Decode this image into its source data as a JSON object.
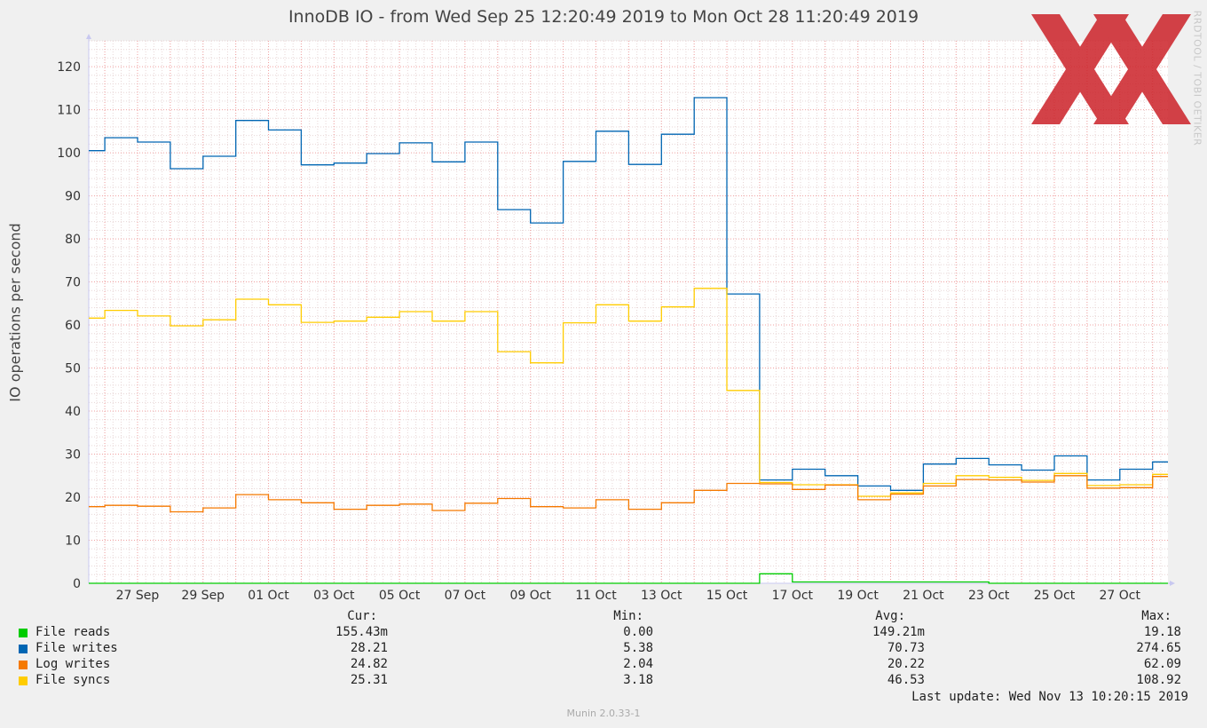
{
  "chart_data": {
    "type": "line",
    "title": "InnoDB IO - from Wed Sep 25 12:20:49 2019 to Mon Oct 28 11:20:49 2019",
    "ylabel": "IO operations per second",
    "xlabel": "",
    "ylim": [
      0,
      126
    ],
    "y_ticks": [
      0,
      10,
      20,
      30,
      40,
      50,
      60,
      70,
      80,
      90,
      100,
      110,
      120
    ],
    "x_range_days": [
      25.51,
      58.47
    ],
    "x_ticks": [
      {
        "day": 27,
        "label": "27 Sep"
      },
      {
        "day": 29,
        "label": "29 Sep"
      },
      {
        "day": 31,
        "label": "01 Oct"
      },
      {
        "day": 33,
        "label": "03 Oct"
      },
      {
        "day": 35,
        "label": "05 Oct"
      },
      {
        "day": 37,
        "label": "07 Oct"
      },
      {
        "day": 39,
        "label": "09 Oct"
      },
      {
        "day": 41,
        "label": "11 Oct"
      },
      {
        "day": 43,
        "label": "13 Oct"
      },
      {
        "day": 45,
        "label": "15 Oct"
      },
      {
        "day": 47,
        "label": "17 Oct"
      },
      {
        "day": 49,
        "label": "19 Oct"
      },
      {
        "day": 51,
        "label": "21 Oct"
      },
      {
        "day": 53,
        "label": "23 Oct"
      },
      {
        "day": 55,
        "label": "25 Oct"
      },
      {
        "day": 57,
        "label": "27 Oct"
      }
    ],
    "grid": true,
    "step": true,
    "segment_start_days": [
      25.51,
      26.0,
      27.0,
      28.0,
      29.0,
      30.0,
      31.0,
      32.0,
      33.0,
      34.0,
      35.0,
      36.0,
      37.0,
      38.0,
      39.0,
      40.0,
      41.0,
      42.0,
      43.0,
      44.0,
      45.0,
      46.0,
      47.0,
      48.0,
      49.0,
      50.0,
      51.0,
      52.0,
      53.0,
      54.0,
      55.0,
      56.0,
      57.0,
      58.0
    ],
    "x_end_day": 58.47,
    "series": [
      {
        "name": "File writes",
        "color": "#0066b3",
        "values": [
          100.5,
          103.5,
          102.5,
          96.3,
          99.2,
          107.5,
          105.3,
          97.2,
          97.6,
          99.8,
          102.3,
          97.9,
          102.5,
          86.8,
          83.7,
          98.0,
          105.0,
          97.3,
          104.3,
          112.8,
          67.2,
          24.0,
          26.5,
          25.0,
          22.6,
          21.6,
          27.7,
          29.0,
          27.5,
          26.3,
          29.6,
          24.0,
          26.5,
          28.2
        ]
      },
      {
        "name": "File syncs",
        "color": "#ffcc00",
        "values": [
          61.6,
          63.4,
          62.1,
          59.8,
          61.2,
          66.0,
          64.7,
          60.6,
          60.9,
          61.8,
          63.1,
          60.9,
          63.1,
          53.8,
          51.2,
          60.5,
          64.7,
          60.9,
          64.2,
          68.5,
          44.8,
          23.4,
          22.9,
          22.9,
          20.2,
          21.0,
          23.2,
          25.0,
          24.6,
          23.9,
          25.5,
          22.7,
          22.9,
          25.3
        ]
      },
      {
        "name": "Log writes",
        "color": "#f57900",
        "values": [
          17.8,
          18.1,
          17.9,
          16.6,
          17.5,
          20.6,
          19.4,
          18.7,
          17.2,
          18.1,
          18.4,
          16.9,
          18.6,
          19.7,
          17.8,
          17.5,
          19.4,
          17.2,
          18.7,
          21.6,
          23.2,
          23.1,
          21.8,
          22.8,
          19.4,
          20.7,
          22.6,
          24.1,
          24.0,
          23.5,
          25.0,
          22.1,
          22.2,
          24.8
        ]
      },
      {
        "name": "File reads",
        "color": "#00cc00",
        "values": [
          0,
          0,
          0,
          0,
          0,
          0,
          0,
          0,
          0,
          0,
          0,
          0,
          0,
          0,
          0,
          0,
          0,
          0,
          0,
          0,
          0,
          2.2,
          0.3,
          0.3,
          0.3,
          0.3,
          0.3,
          0.3,
          0,
          0,
          0,
          0,
          0,
          0
        ]
      }
    ]
  },
  "legend": {
    "headers": {
      "cur": "Cur:",
      "min": "Min:",
      "avg": "Avg:",
      "max": "Max:"
    },
    "rows": [
      {
        "name": "File reads",
        "color": "#00cc00",
        "cur": "155.43m",
        "min": "0.00",
        "avg": "149.21m",
        "max": "19.18"
      },
      {
        "name": "File writes",
        "color": "#0066b3",
        "cur": "28.21",
        "min": "5.38",
        "avg": "70.73",
        "max": "274.65"
      },
      {
        "name": "Log writes",
        "color": "#f57900",
        "cur": "24.82",
        "min": "2.04",
        "avg": "20.22",
        "max": "62.09"
      },
      {
        "name": "File syncs",
        "color": "#ffcc00",
        "cur": "25.31",
        "min": "3.18",
        "avg": "46.53",
        "max": "108.92"
      }
    ]
  },
  "last_update": "Last update: Wed Nov 13 10:20:15 2019",
  "version": "Munin 2.0.33-1",
  "watermark": "RRDTOOL / TOBI OETIKER",
  "logo_color": "#cc2229"
}
